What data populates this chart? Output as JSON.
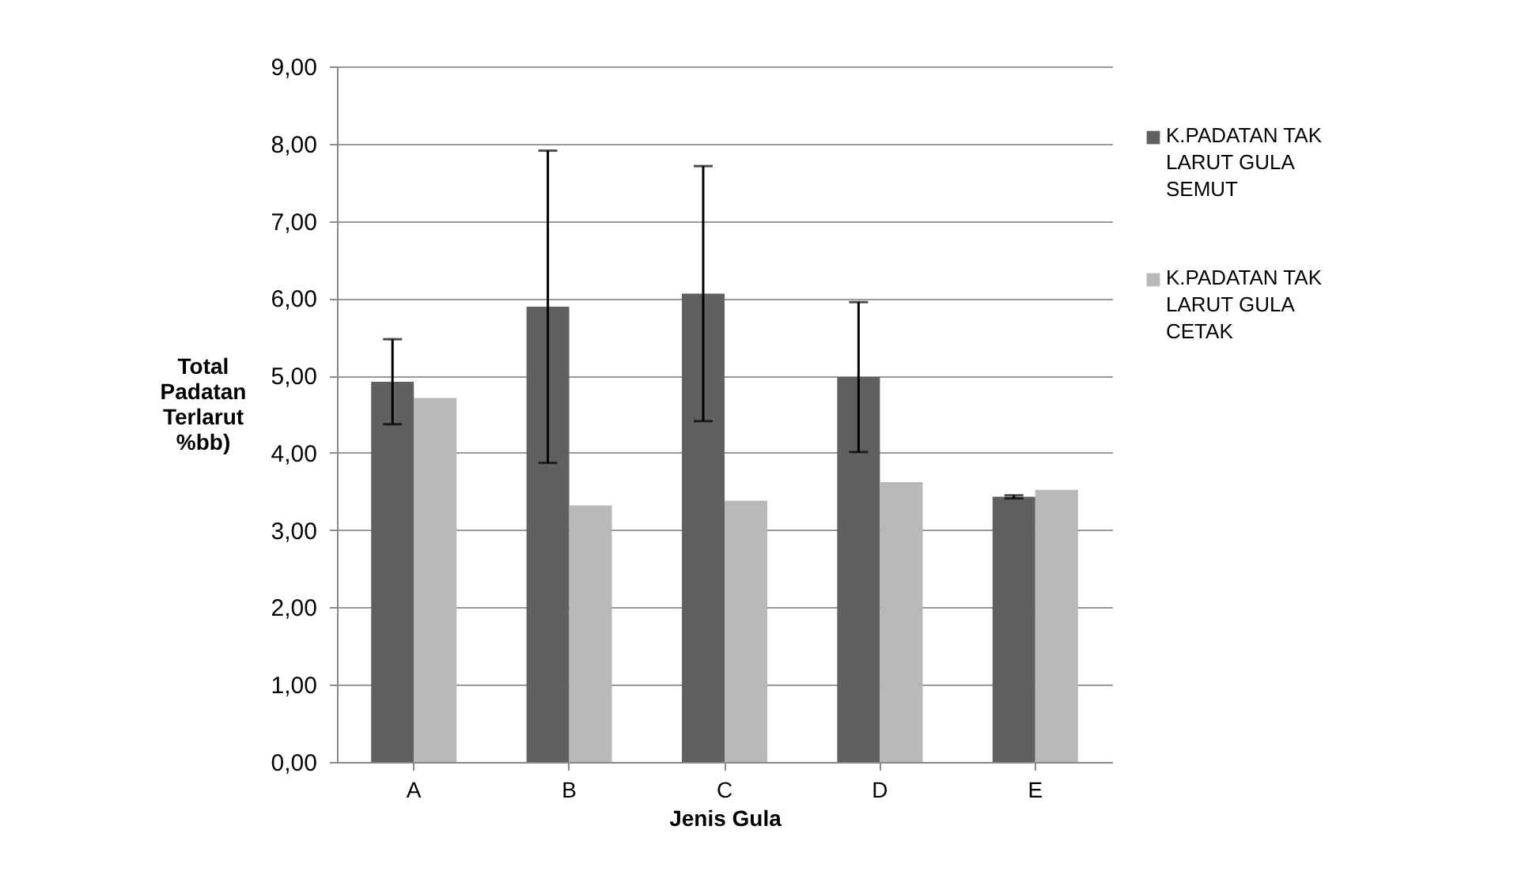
{
  "chart_data": {
    "type": "bar",
    "xlabel": "Jenis Gula",
    "ylabel": "Total Padatan Terlarut %bb)",
    "categories": [
      "A",
      "B",
      "C",
      "D",
      "E"
    ],
    "series": [
      {
        "name": "K.PADATAN TAK LARUT GULA SEMUT",
        "color": "#606060",
        "values": [
          4.92,
          5.89,
          6.06,
          4.98,
          3.43
        ],
        "errors": [
          0.55,
          2.02,
          1.65,
          0.97,
          0.02
        ]
      },
      {
        "name": "K.PADATAN TAK LARUT GULA CETAK",
        "color": "#b8b8b8",
        "values": [
          4.71,
          3.32,
          3.38,
          3.62,
          3.52
        ]
      }
    ],
    "ylim": [
      0,
      9
    ],
    "yticks": [
      {
        "value": 0,
        "label": "0,00"
      },
      {
        "value": 1,
        "label": "1,00"
      },
      {
        "value": 2,
        "label": "2,00"
      },
      {
        "value": 3,
        "label": "3,00"
      },
      {
        "value": 4,
        "label": "4,00"
      },
      {
        "value": 5,
        "label": "5,00"
      },
      {
        "value": 6,
        "label": "6,00"
      },
      {
        "value": 7,
        "label": "7,00"
      },
      {
        "value": 8,
        "label": "8,00"
      },
      {
        "value": 9,
        "label": "9,00"
      }
    ],
    "grid": "y",
    "legend": "right"
  }
}
